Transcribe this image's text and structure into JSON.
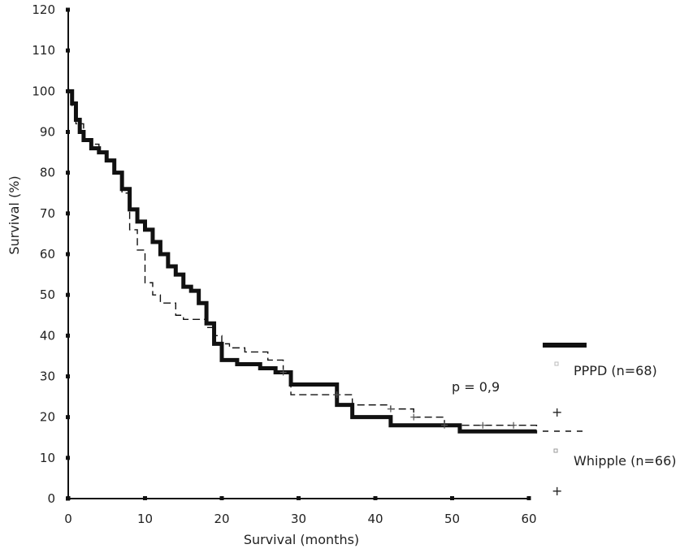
{
  "chart_data": {
    "type": "line",
    "title": "",
    "xlabel": "Survival (months)",
    "ylabel": "Survival (%)",
    "xlim": [
      0,
      60
    ],
    "ylim": [
      0,
      120
    ],
    "x_ticks": [
      0,
      10,
      20,
      30,
      40,
      50,
      60
    ],
    "y_ticks": [
      0,
      10,
      20,
      30,
      40,
      50,
      60,
      70,
      80,
      90,
      100,
      110,
      120
    ],
    "grid": false,
    "legend_position": "right",
    "annotation": "p = 0,9",
    "series": [
      {
        "name": "PPPD (n=68)",
        "style": "solid-thick",
        "color": "#111111",
        "x": [
          0,
          0.5,
          1,
          1.5,
          2,
          3,
          4,
          5,
          6,
          7,
          8,
          9,
          10,
          11,
          12,
          13,
          14,
          15,
          16,
          17,
          18,
          19,
          20,
          22,
          25,
          27,
          29,
          31,
          35,
          36,
          37,
          42,
          50,
          51,
          61
        ],
        "y": [
          100,
          97,
          93,
          90,
          88,
          86,
          85,
          83,
          80,
          76,
          71,
          68,
          66,
          63,
          60,
          57,
          55,
          52,
          51,
          48,
          43,
          38,
          34,
          33,
          32,
          31,
          28,
          28,
          23,
          23,
          20,
          18,
          18,
          16.5,
          16.5
        ]
      },
      {
        "name": "Whipple (n=66)",
        "style": "dashed-thin",
        "color": "#111111",
        "x": [
          0,
          0.5,
          1,
          2,
          3,
          4,
          5,
          6,
          7,
          8,
          9,
          10,
          11,
          12,
          14,
          15,
          16,
          17,
          18,
          19,
          20,
          21,
          23,
          26,
          28,
          29,
          32,
          35,
          37,
          40,
          42,
          45,
          48,
          49,
          54,
          58,
          61
        ],
        "y": [
          100,
          96,
          92,
          88,
          87,
          85,
          83,
          80,
          75,
          66,
          61,
          53,
          50,
          48,
          45,
          44,
          44,
          44,
          42,
          40,
          38,
          37,
          36,
          34,
          31,
          25.5,
          25.5,
          25.5,
          23,
          23,
          22,
          20,
          20,
          18,
          18,
          18,
          16
        ]
      }
    ]
  },
  "legend": {
    "items": [
      {
        "label": "PPPD (n=68)"
      },
      {
        "label": "Whipple (n=66)"
      }
    ],
    "censor_symbol": "+"
  }
}
